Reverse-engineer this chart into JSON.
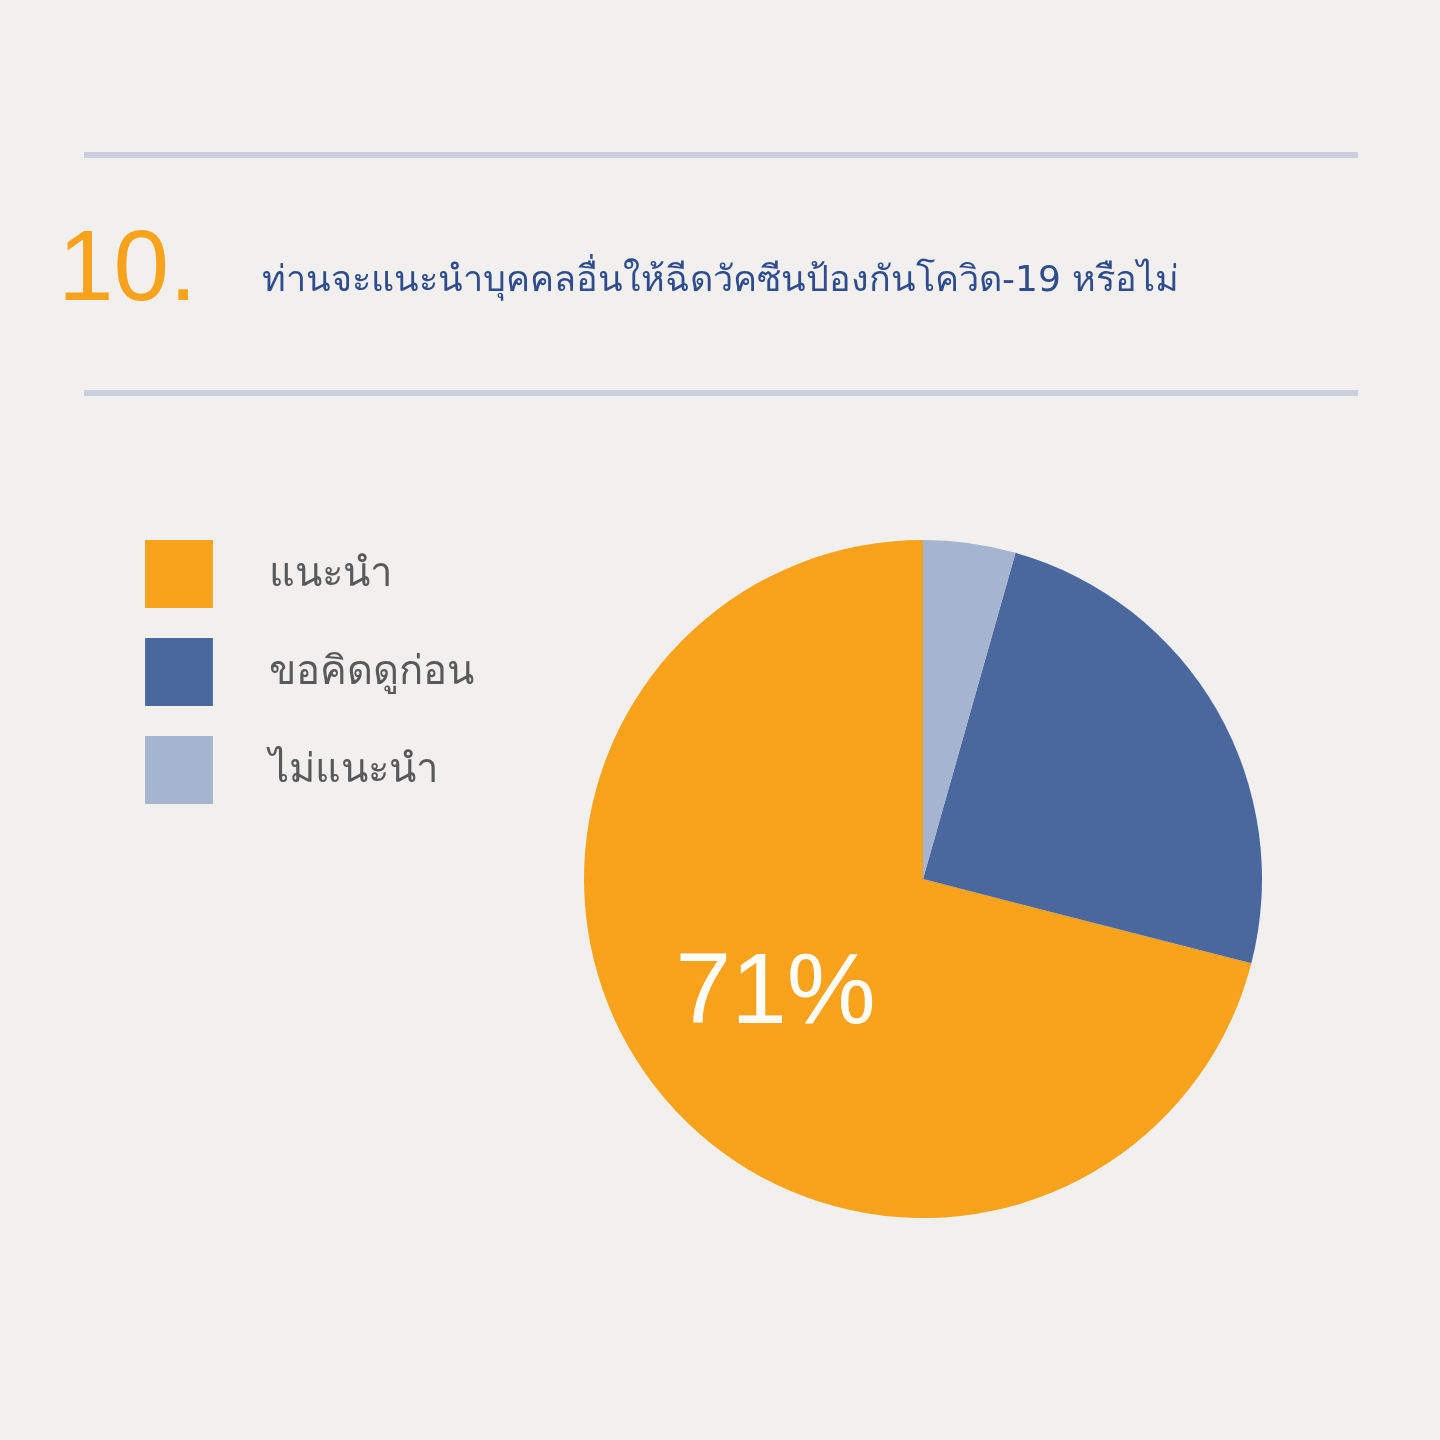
{
  "chart_data": {
    "type": "pie",
    "title": "10.",
    "subtitle": "ท่านจะแนะนำบุคคลอื่นให้ฉีดวัคซีนป้องกันโควิด-19 หรือไม่",
    "categories": [
      "แนะนำ",
      "ขอคิดดูก่อน",
      "ไม่แนะนำ"
    ],
    "values": [
      71,
      24.6,
      4.4
    ],
    "colors": [
      "#f9a31d",
      "#4a689e",
      "#a5b4cf"
    ],
    "value_labels": [
      "71%",
      null,
      null
    ],
    "legend": "left"
  }
}
